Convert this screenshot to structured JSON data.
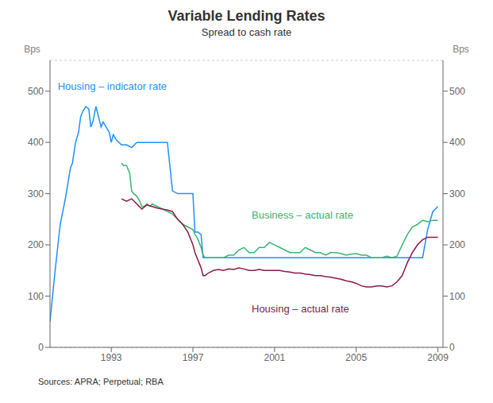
{
  "chart_data": {
    "type": "line",
    "title": "Variable Lending Rates",
    "subtitle": "Spread to cash rate",
    "ylabel": "Bps",
    "y2label": "Bps",
    "source": "Sources: APRA; Perpetual; RBA",
    "xlim": [
      1990.0,
      2009.25
    ],
    "xticks": [
      1993,
      1997,
      2001,
      2005,
      2009
    ],
    "ylim": [
      0,
      560
    ],
    "yticks": [
      0,
      100,
      200,
      300,
      400,
      500
    ],
    "y2lim": [
      0,
      560
    ],
    "y2ticks": [
      0,
      100,
      200,
      300,
      400,
      500
    ],
    "grid": "y",
    "series": [
      {
        "color": "#1e90ff",
        "x": [
          1990.0,
          1990.25,
          1990.5,
          1990.75,
          1991.0,
          1991.1,
          1991.25,
          1991.4,
          1991.5,
          1991.6,
          1991.75,
          1991.9,
          1992.0,
          1992.1,
          1992.25,
          1992.5,
          1992.6,
          1992.75,
          1992.9,
          1993.0,
          1993.1,
          1993.25,
          1993.5,
          1993.75,
          1994.0,
          1994.25,
          1994.5,
          1994.75,
          1995.0,
          1995.25,
          1995.5,
          1995.75,
          1996.0,
          1996.25,
          1996.5,
          1996.75,
          1997.0,
          1997.1,
          1997.25,
          1997.4,
          1997.5,
          1997.75,
          1998.0,
          1998.25,
          1998.5,
          1998.75,
          1999.0,
          1999.25,
          1999.5,
          1999.75,
          2000.0,
          2000.25,
          2000.5,
          2000.75,
          2001.0,
          2001.25,
          2001.5,
          2001.75,
          2002.0,
          2002.25,
          2002.5,
          2002.75,
          2003.0,
          2003.25,
          2003.5,
          2003.75,
          2004.0,
          2004.25,
          2004.5,
          2004.75,
          2005.0,
          2005.25,
          2005.5,
          2005.75,
          2006.0,
          2006.25,
          2006.5,
          2006.75,
          2007.0,
          2007.25,
          2007.5,
          2007.75,
          2008.0,
          2008.25,
          2008.5,
          2008.75,
          2009.0
        ],
        "values": [
          50,
          150,
          240,
          290,
          350,
          360,
          400,
          420,
          450,
          460,
          470,
          465,
          430,
          440,
          470,
          430,
          440,
          430,
          420,
          400,
          415,
          405,
          395,
          395,
          390,
          400,
          400,
          400,
          400,
          400,
          400,
          400,
          305,
          300,
          300,
          300,
          300,
          225,
          225,
          220,
          175,
          175,
          175,
          175,
          175,
          175,
          175,
          175,
          175,
          175,
          175,
          175,
          175,
          175,
          175,
          175,
          175,
          175,
          175,
          175,
          175,
          175,
          175,
          175,
          175,
          175,
          175,
          175,
          175,
          175,
          175,
          175,
          175,
          175,
          175,
          175,
          175,
          175,
          175,
          175,
          175,
          175,
          175,
          175,
          230,
          265,
          275
        ]
      },
      {
        "color": "#3cb371",
        "x": [
          1993.5,
          1993.6,
          1993.75,
          1993.9,
          1994.0,
          1994.1,
          1994.25,
          1994.4,
          1994.5,
          1994.6,
          1994.75,
          1994.9,
          1995.0,
          1995.25,
          1995.5,
          1995.75,
          1996.0,
          1996.25,
          1996.5,
          1996.75,
          1997.0,
          1997.1,
          1997.2,
          1997.3,
          1997.4,
          1997.5,
          1997.6,
          1997.75,
          1997.9,
          1998.0,
          1998.25,
          1998.5,
          1998.75,
          1999.0,
          1999.25,
          1999.5,
          1999.75,
          2000.0,
          2000.25,
          2000.5,
          2000.75,
          2001.0,
          2001.25,
          2001.5,
          2001.75,
          2002.0,
          2002.25,
          2002.5,
          2002.75,
          2003.0,
          2003.25,
          2003.5,
          2003.75,
          2004.0,
          2004.25,
          2004.5,
          2004.75,
          2005.0,
          2005.25,
          2005.5,
          2005.75,
          2006.0,
          2006.25,
          2006.5,
          2006.75,
          2007.0,
          2007.25,
          2007.5,
          2007.75,
          2008.0,
          2008.25,
          2008.5,
          2008.75,
          2009.0
        ],
        "values": [
          360,
          355,
          355,
          340,
          305,
          300,
          295,
          285,
          275,
          275,
          280,
          275,
          280,
          275,
          270,
          265,
          260,
          250,
          240,
          235,
          230,
          220,
          215,
          205,
          195,
          180,
          175,
          175,
          175,
          175,
          175,
          175,
          180,
          180,
          190,
          195,
          185,
          185,
          195,
          195,
          205,
          200,
          195,
          190,
          185,
          185,
          185,
          195,
          190,
          185,
          185,
          180,
          185,
          185,
          183,
          180,
          182,
          183,
          180,
          180,
          175,
          175,
          175,
          178,
          175,
          178,
          200,
          220,
          235,
          240,
          248,
          245,
          248,
          248
        ]
      },
      {
        "color": "#8b1a4a",
        "x": [
          1993.5,
          1993.75,
          1994.0,
          1994.25,
          1994.5,
          1994.75,
          1995.0,
          1995.25,
          1995.5,
          1995.75,
          1996.0,
          1996.25,
          1996.5,
          1996.75,
          1997.0,
          1997.1,
          1997.2,
          1997.3,
          1997.4,
          1997.5,
          1997.6,
          1997.75,
          1997.9,
          1998.0,
          1998.25,
          1998.5,
          1998.75,
          1999.0,
          1999.25,
          1999.5,
          1999.75,
          2000.0,
          2000.25,
          2000.5,
          2000.75,
          2001.0,
          2001.25,
          2001.5,
          2001.75,
          2002.0,
          2002.25,
          2002.5,
          2002.75,
          2003.0,
          2003.25,
          2003.5,
          2003.75,
          2004.0,
          2004.25,
          2004.5,
          2004.75,
          2005.0,
          2005.25,
          2005.5,
          2005.75,
          2006.0,
          2006.25,
          2006.5,
          2006.75,
          2007.0,
          2007.25,
          2007.5,
          2007.75,
          2008.0,
          2008.25,
          2008.5,
          2008.75,
          2009.0
        ],
        "values": [
          290,
          285,
          290,
          280,
          270,
          278,
          275,
          272,
          270,
          268,
          265,
          250,
          240,
          225,
          200,
          185,
          175,
          165,
          155,
          140,
          140,
          145,
          148,
          150,
          152,
          150,
          153,
          152,
          155,
          153,
          150,
          150,
          152,
          150,
          150,
          150,
          150,
          148,
          147,
          145,
          145,
          143,
          142,
          140,
          140,
          138,
          137,
          135,
          133,
          130,
          128,
          125,
          120,
          118,
          118,
          120,
          120,
          118,
          120,
          128,
          140,
          165,
          185,
          200,
          210,
          215,
          215,
          215
        ]
      }
    ],
    "annotations": [
      {
        "text": "Housing – indicator rate",
        "x": 1990.3,
        "y": 510,
        "color": "#1e90ff"
      },
      {
        "text": "Business – actual rate",
        "x": 1999.8,
        "y": 258,
        "color": "#3cb371"
      },
      {
        "text": "Housing – actual rate",
        "x": 1999.8,
        "y": 75,
        "color": "#8b1a4a"
      }
    ]
  }
}
